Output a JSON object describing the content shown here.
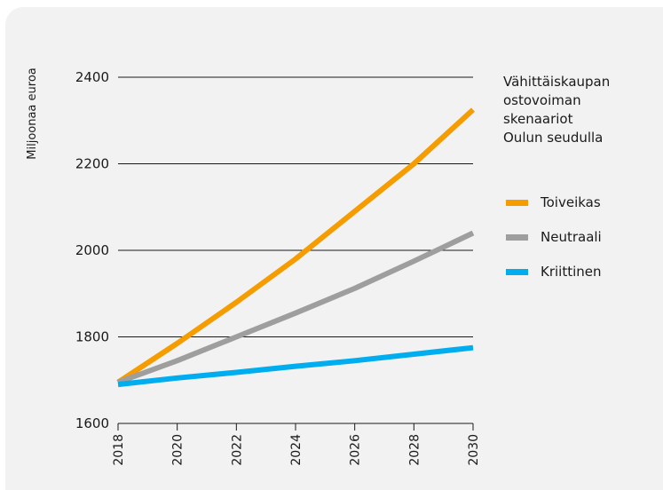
{
  "chart_data": {
    "type": "line",
    "title_lines": [
      "Vähittäiskaupan",
      "ostovoiman",
      "skenaariot",
      "Oulun seudulla"
    ],
    "xlabel": "",
    "ylabel": "Miljoonaa euroa",
    "ylim": [
      1600,
      2400
    ],
    "yticks": [
      1600,
      1800,
      2000,
      2200,
      2400
    ],
    "xlim": [
      2018,
      2030
    ],
    "xticks": [
      2018,
      2020,
      2022,
      2024,
      2026,
      2028,
      2030
    ],
    "grid": "horizontal",
    "legend_position": "right",
    "x": [
      2018,
      2020,
      2022,
      2024,
      2026,
      2028,
      2030
    ],
    "series": [
      {
        "name": "Toiveikas",
        "color": "#f59c00",
        "values": [
          1695,
          1785,
          1880,
          1980,
          2090,
          2200,
          2325
        ]
      },
      {
        "name": "Neutraali",
        "color": "#9e9e9e",
        "values": [
          1695,
          1745,
          1800,
          1855,
          1912,
          1975,
          2040
        ]
      },
      {
        "name": "Kriittinen",
        "color": "#00aeef",
        "values": [
          1690,
          1705,
          1718,
          1732,
          1745,
          1760,
          1775
        ]
      }
    ]
  }
}
